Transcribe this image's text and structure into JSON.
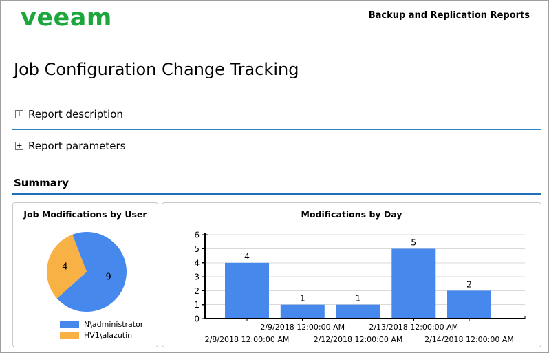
{
  "header": {
    "logo_text": "veeam",
    "suite_label": "Backup and Replication Reports"
  },
  "page_title": "Job Configuration Change Tracking",
  "sections": [
    {
      "label": "Report description",
      "expand_glyph": "+"
    },
    {
      "label": "Report parameters",
      "expand_glyph": "+"
    }
  ],
  "summary": {
    "heading": "Summary"
  },
  "colors": {
    "brand_green": "#1ca63c",
    "divider_blue": "#2e86c1",
    "summary_rule_blue": "#2270b8",
    "series_blue": "#4688ec",
    "series_orange": "#f8b144",
    "gridline_gray": "#d9d9d9",
    "axis_black": "#000000"
  },
  "chart_data": [
    {
      "type": "pie",
      "title": "Job Modifications by User",
      "slices": [
        {
          "label": "N\\administrator",
          "value": 9,
          "color": "#4688ec"
        },
        {
          "label": "HV1\\alazutin",
          "value": 4,
          "color": "#f8b144"
        }
      ],
      "data_labels": [
        9,
        4
      ],
      "legend_position": "bottom"
    },
    {
      "type": "bar",
      "title": "Modifications by Day",
      "categories": [
        "2/8/2018 12:00:00 AM",
        "2/9/2018 12:00:00 AM",
        "2/12/2018 12:00:00 AM",
        "2/13/2018 12:00:00 AM",
        "2/14/2018 12:00:00 AM"
      ],
      "values": [
        4,
        1,
        1,
        5,
        2
      ],
      "xlabel": "",
      "ylabel": "",
      "ylim": [
        0,
        6
      ],
      "ytick_step": 1,
      "grid": "horizontal",
      "data_labels": true,
      "legend_position": "none"
    }
  ]
}
